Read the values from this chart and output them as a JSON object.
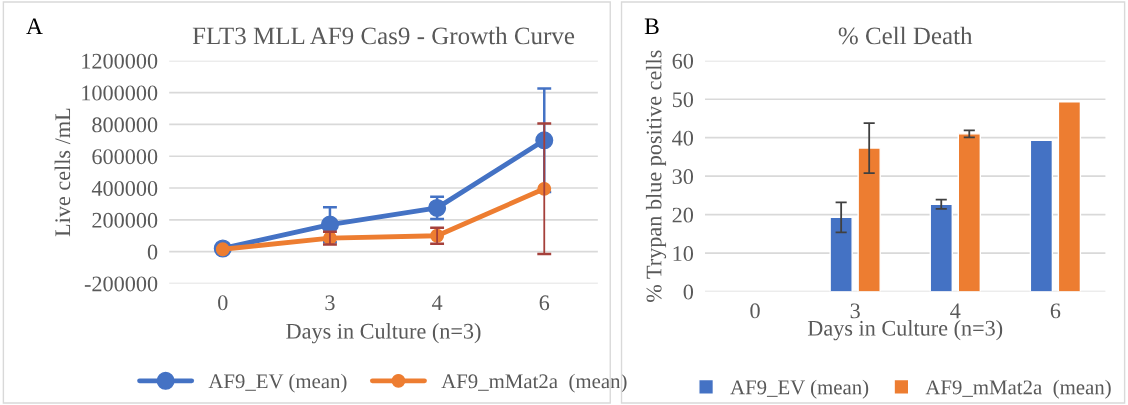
{
  "chart_data": [
    {
      "type": "line",
      "title": "FLT3 MLL AF9 Cas9 - Growth Curve",
      "xlabel": "Days in Culture (n=3)",
      "ylabel": "Live cells /mL",
      "annotations": [
        "A"
      ],
      "categories": [
        "0",
        "3",
        "4",
        "6"
      ],
      "series": [
        {
          "name": "AF9_EV (mean)",
          "color": "#4472c4",
          "values": [
            20000,
            170000,
            275000,
            700000
          ],
          "errors": [
            null,
            110000,
            70000,
            325000
          ]
        },
        {
          "name": "AF9_mMat2a  (mean)",
          "color": "#ed7d31",
          "values": [
            15000,
            85000,
            100000,
            395000
          ],
          "errors": [
            null,
            40000,
            50000,
            410000
          ]
        }
      ],
      "ylim": [
        -200000,
        1200000
      ],
      "yticks": [
        -200000,
        0,
        200000,
        400000,
        600000,
        800000,
        1000000,
        1200000
      ],
      "grid": "y",
      "legend": "bottom",
      "marker": "circle",
      "line_style": "solid"
    },
    {
      "type": "bar",
      "title": "% Cell Death",
      "xlabel": "Days in Culture (n=3)",
      "ylabel": "% Trypan blue positive cells",
      "annotations": [
        "B"
      ],
      "categories": [
        "0",
        "3",
        "4",
        "6"
      ],
      "series": [
        {
          "name": "AF9_EV (mean)",
          "color": "#4472c4",
          "values": [
            null,
            19.3,
            22.7,
            39.3
          ],
          "errors": [
            null,
            3.9,
            1.2,
            null
          ]
        },
        {
          "name": "AF9_mMat2a  (mean)",
          "color": "#ed7d31",
          "values": [
            null,
            37.3,
            41,
            49.3
          ],
          "errors": [
            null,
            6.5,
            0.9,
            null
          ]
        }
      ],
      "ylim": [
        0,
        60
      ],
      "yticks": [
        0,
        10,
        20,
        30,
        40,
        50,
        60
      ],
      "grid": "y",
      "legend": "bottom"
    }
  ]
}
